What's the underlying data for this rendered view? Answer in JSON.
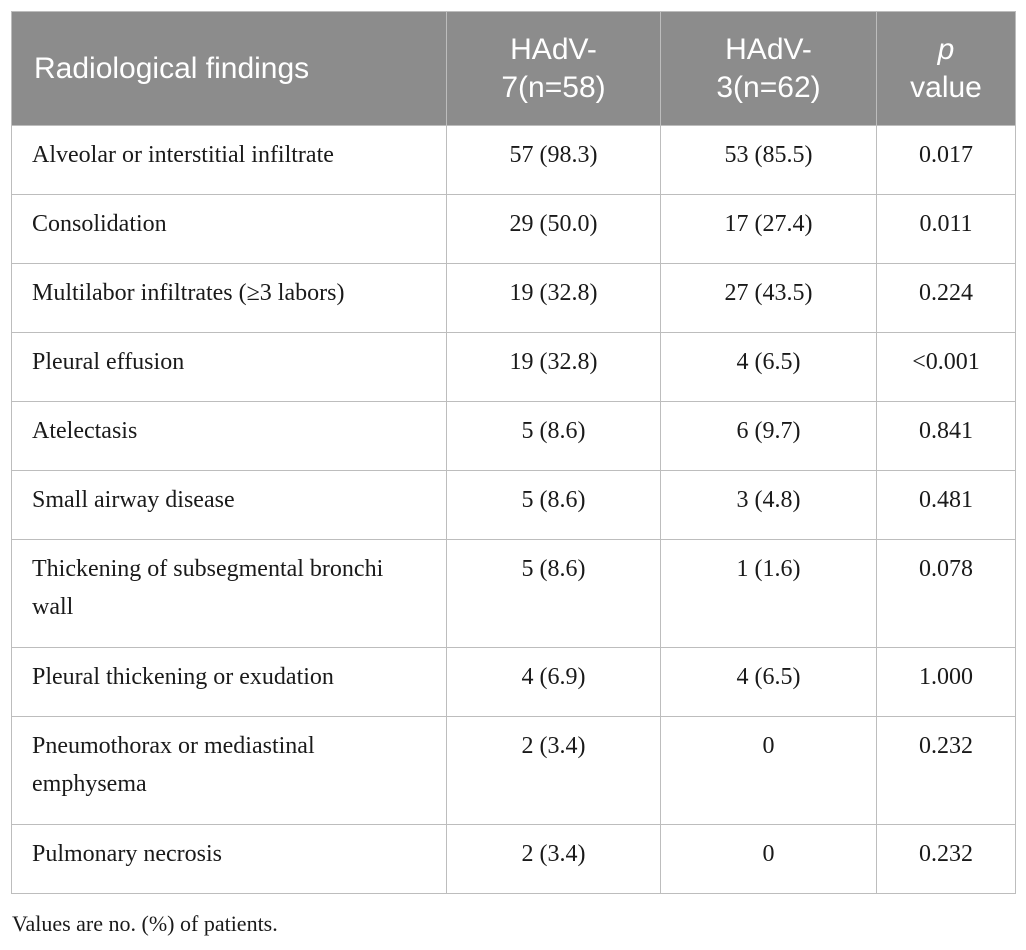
{
  "table": {
    "headers": {
      "col1": "Radiological findings",
      "col2": "HAdV-7(n=58)",
      "col3": "HAdV-3(n=62)",
      "col4_italic": "p",
      "col4_rest": "value"
    },
    "rows": [
      {
        "finding": "Alveolar or interstitial infiltrate",
        "hadv7": "57 (98.3)",
        "hadv3": "53 (85.5)",
        "p": "0.017"
      },
      {
        "finding": "Consolidation",
        "hadv7": "29 (50.0)",
        "hadv3": "17 (27.4)",
        "p": "0.011"
      },
      {
        "finding": "Multilabor infiltrates (≥3 labors)",
        "hadv7": "19 (32.8)",
        "hadv3": "27 (43.5)",
        "p": "0.224"
      },
      {
        "finding": "Pleural effusion",
        "hadv7": "19 (32.8)",
        "hadv3": "4 (6.5)",
        "p": "<0.001"
      },
      {
        "finding": "Atelectasis",
        "hadv7": "5 (8.6)",
        "hadv3": "6 (9.7)",
        "p": "0.841"
      },
      {
        "finding": "Small airway disease",
        "hadv7": "5 (8.6)",
        "hadv3": "3 (4.8)",
        "p": "0.481"
      },
      {
        "finding": "Thickening of subsegmental bronchi wall",
        "hadv7": "5 (8.6)",
        "hadv3": "1 (1.6)",
        "p": "0.078"
      },
      {
        "finding": "Pleural thickening or exudation",
        "hadv7": "4 (6.9)",
        "hadv3": "4 (6.5)",
        "p": "1.000"
      },
      {
        "finding": "Pneumothorax or mediastinal emphysema",
        "hadv7": "2 (3.4)",
        "hadv3": "0",
        "p": "0.232"
      },
      {
        "finding": "Pulmonary necrosis",
        "hadv7": "2 (3.4)",
        "hadv3": "0",
        "p": "0.232"
      }
    ]
  },
  "footnote": "Values are no. (%) of patients.",
  "colors": {
    "header_bg": "#8c8c8c",
    "header_text": "#ffffff",
    "border": "#bdbdbd"
  }
}
